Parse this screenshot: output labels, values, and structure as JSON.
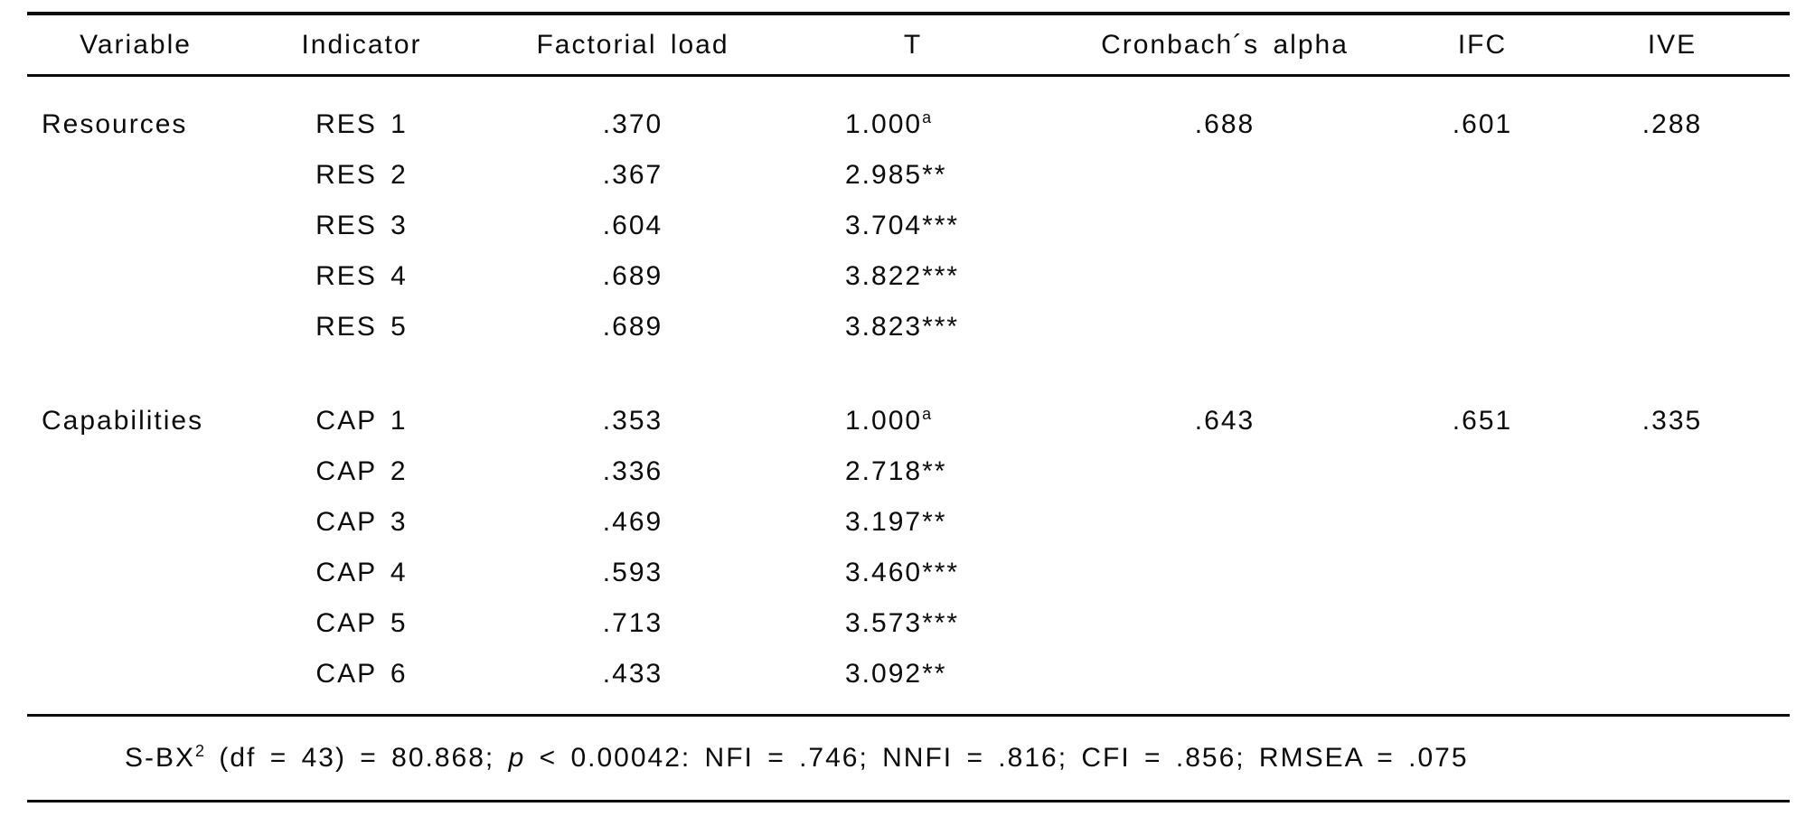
{
  "table": {
    "columns": {
      "variable": "Variable",
      "indicator": "Indicator",
      "factorial_load": "Factorial load",
      "t": "T",
      "cronbach": "Cronbach´s alpha",
      "ifc": "IFC",
      "ive": "IVE"
    },
    "groups": [
      {
        "variable": "Resources",
        "cronbach_alpha": ".688",
        "ifc": ".601",
        "ive": ".288",
        "rows": [
          {
            "indicator": "RES 1",
            "load": ".370",
            "t": "1.000",
            "t_sup": "a"
          },
          {
            "indicator": "RES 2",
            "load": ".367",
            "t": "2.985**",
            "t_sup": ""
          },
          {
            "indicator": "RES 3",
            "load": ".604",
            "t": "3.704***",
            "t_sup": ""
          },
          {
            "indicator": "RES 4",
            "load": ".689",
            "t": "3.822***",
            "t_sup": ""
          },
          {
            "indicator": "RES 5",
            "load": ".689",
            "t": "3.823***",
            "t_sup": ""
          }
        ]
      },
      {
        "variable": "Capabilities",
        "cronbach_alpha": ".643",
        "ifc": ".651",
        "ive": ".335",
        "rows": [
          {
            "indicator": "CAP 1",
            "load": ".353",
            "t": "1.000",
            "t_sup": "a"
          },
          {
            "indicator": "CAP 2",
            "load": ".336",
            "t": "2.718**",
            "t_sup": ""
          },
          {
            "indicator": "CAP 3",
            "load": ".469",
            "t": "3.197**",
            "t_sup": ""
          },
          {
            "indicator": "CAP 4",
            "load": ".593",
            "t": "3.460***",
            "t_sup": ""
          },
          {
            "indicator": "CAP 5",
            "load": ".713",
            "t": "3.573***",
            "t_sup": ""
          },
          {
            "indicator": "CAP 6",
            "load": ".433",
            "t": "3.092**",
            "t_sup": ""
          }
        ]
      }
    ],
    "fit_note": {
      "stat_base": "S-BX",
      "stat_sup": "2",
      "segment_mid": " (df = 43) = 80.868; ",
      "p_symbol": "p",
      "segment_rest": " < 0.00042: NFI = .746; NNFI = .816; CFI = .856; RMSEA = .075"
    }
  }
}
